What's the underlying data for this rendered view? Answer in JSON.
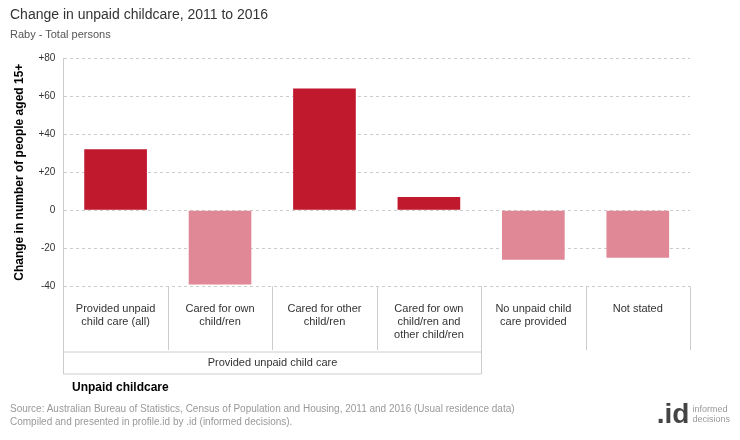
{
  "chart_data": {
    "type": "bar",
    "title": "Change in unpaid childcare, 2011 to 2016",
    "subtitle": "Raby - Total persons",
    "x_label": "Unpaid childcare",
    "y_label": "Change in number of people aged 15+",
    "categories": [
      "Provided unpaid\nchild care (all)",
      "Cared for own\nchild/ren",
      "Cared for other\nchild/ren",
      "Cared for own\nchild/ren and\nother child/ren",
      "No unpaid child\ncare provided",
      "Not stated"
    ],
    "values": [
      32,
      -39,
      64,
      7,
      -26,
      -25
    ],
    "colors": [
      "#c0182d",
      "#e08896",
      "#c0182d",
      "#c0182d",
      "#e08896",
      "#e08896"
    ],
    "category_groups": [
      {
        "label": "Provided unpaid child care",
        "categories": [
          "Cared for own\nchild/ren",
          "Cared for other\nchild/ren",
          "Cared for own\nchild/ren and\nother child/ren",
          "Provided unpaid\nchild care (all)"
        ]
      }
    ],
    "ylim": [
      -40,
      80
    ],
    "yticks": [
      -40,
      -20,
      0,
      {
        "value": 20,
        "label": "+20"
      },
      {
        "value": 40,
        "label": "+40"
      },
      {
        "value": 60,
        "label": "+60"
      },
      {
        "value": 80,
        "label": "+80"
      }
    ],
    "grid": true,
    "source": "Source: Australian Bureau of Statistics, Census of Population and Housing, 2011 and 2016 (Usual residence data)\nCompiled and presented in profile.id by .id (informed decisions).",
    "logo": ".id",
    "logo_text": "informed\ndecisions"
  }
}
